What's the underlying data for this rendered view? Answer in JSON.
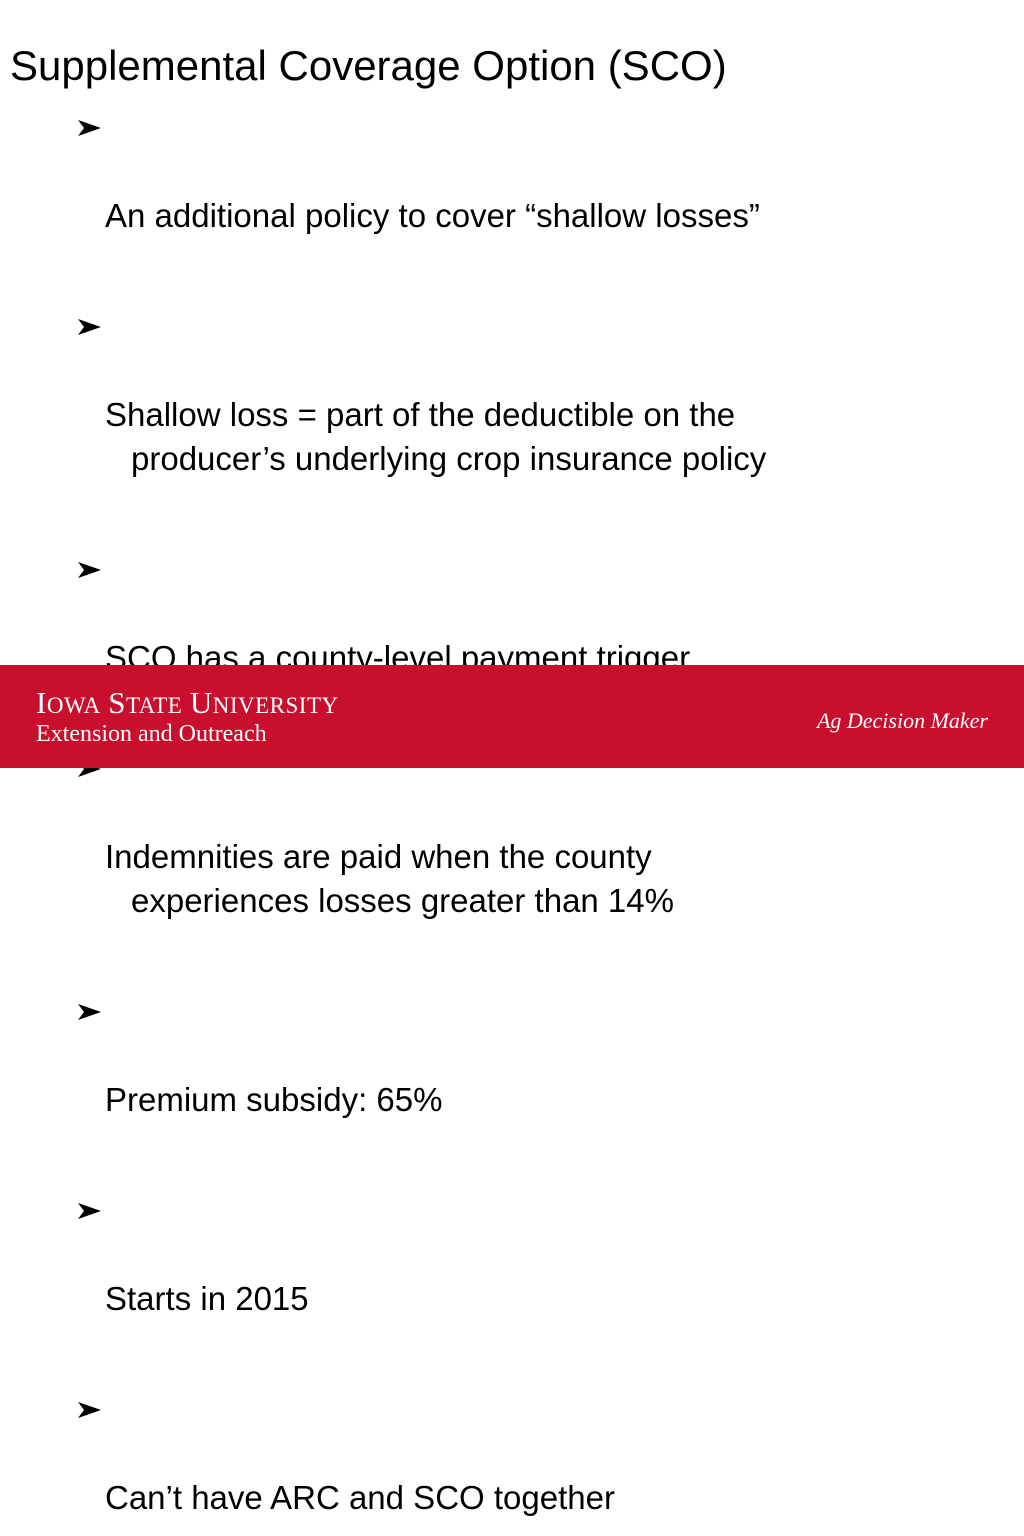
{
  "slide": {
    "title": "Supplemental Coverage Option (SCO)",
    "bullet_icon": "arrowhead-bullet-icon",
    "bullets": [
      {
        "line1": "An additional policy to cover “shallow losses”",
        "line2": ""
      },
      {
        "line1": "Shallow loss = part of the deductible on the",
        "line2": "producer’s underlying crop insurance policy"
      },
      {
        "line1": "SCO has a county-level payment trigger",
        "line2": ""
      },
      {
        "line1": "Indemnities are paid when the county",
        "line2": "experiences losses greater than 14%"
      },
      {
        "line1": "Premium subsidy: 65%",
        "line2": ""
      },
      {
        "line1": "Starts in 2015",
        "line2": ""
      },
      {
        "line1": "Can’t have ARC and SCO together",
        "line2": ""
      }
    ]
  },
  "footer": {
    "background_color": "#c8102e",
    "university_name": "Iowa State University",
    "unit": "Extension and Outreach",
    "brand": "Ag Decision Maker"
  }
}
